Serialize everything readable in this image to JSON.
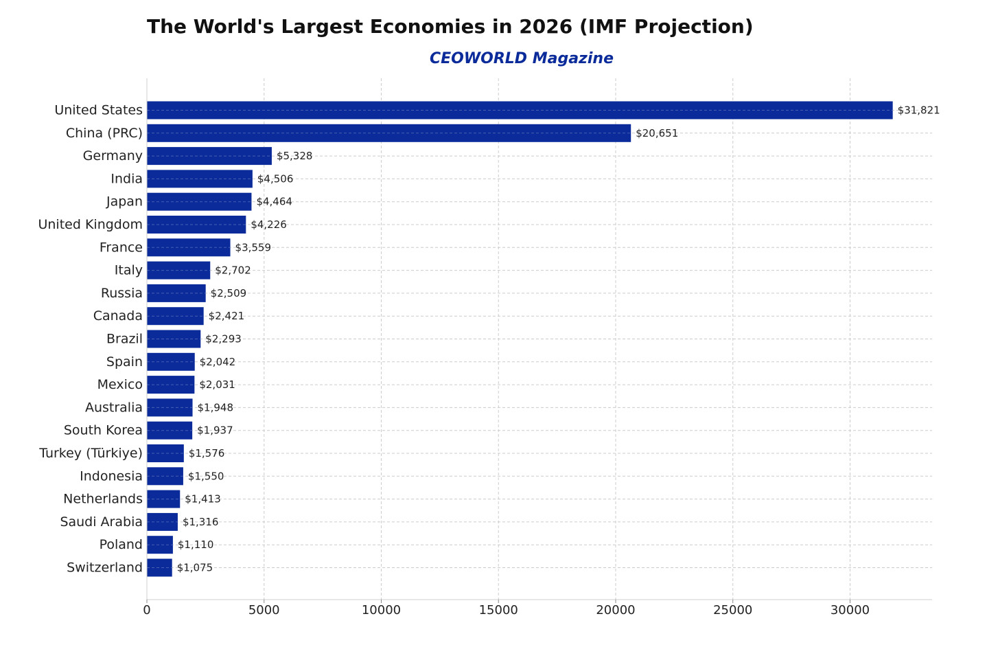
{
  "title": "The World's Largest Economies in 2026 (IMF Projection)",
  "subtitle": "CEOWORLD Magazine",
  "colors": {
    "bar": "#0a2b99",
    "subtitle": "#0a2b99",
    "grid": "#cccccc"
  },
  "chart_data": {
    "type": "bar",
    "orientation": "horizontal",
    "title": "The World's Largest Economies in 2026 (IMF Projection)",
    "subtitle": "CEOWORLD Magazine",
    "categories": [
      "United States",
      "China (PRC)",
      "Germany",
      "India",
      "Japan",
      "United Kingdom",
      "France",
      "Italy",
      "Russia",
      "Canada",
      "Brazil",
      "Spain",
      "Mexico",
      "Australia",
      "South Korea",
      "Turkey (Türkiye)",
      "Indonesia",
      "Netherlands",
      "Saudi Arabia",
      "Poland",
      "Switzerland"
    ],
    "values": [
      31821,
      20651,
      5328,
      4506,
      4464,
      4226,
      3559,
      2702,
      2509,
      2421,
      2293,
      2042,
      2031,
      1948,
      1937,
      1576,
      1550,
      1413,
      1316,
      1110,
      1075
    ],
    "value_labels": [
      "$31,821",
      "$20,651",
      "$5,328",
      "$4,506",
      "$4,464",
      "$4,226",
      "$3,559",
      "$2,702",
      "$2,509",
      "$2,421",
      "$2,293",
      "$2,042",
      "$2,031",
      "$1,948",
      "$1,937",
      "$1,576",
      "$1,550",
      "$1,413",
      "$1,316",
      "$1,110",
      "$1,075"
    ],
    "xticks": [
      0,
      5000,
      10000,
      15000,
      20000,
      25000,
      30000
    ],
    "xtick_labels": [
      "0",
      "5000",
      "10000",
      "15000",
      "20000",
      "25000",
      "30000"
    ],
    "xlim": [
      0,
      33500
    ],
    "xlabel": "",
    "ylabel": "",
    "grid": true
  }
}
